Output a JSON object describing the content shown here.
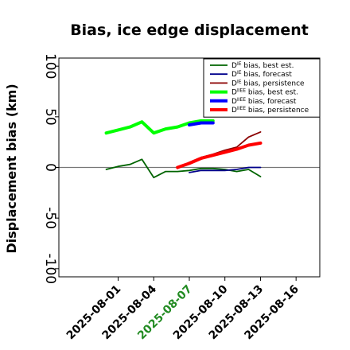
{
  "chart_data": {
    "type": "line",
    "title": "Bias, ice edge displacement",
    "ylabel": "Displacement bias (km)",
    "xlabel": "",
    "ylim": [
      -108,
      108
    ],
    "xlim": [
      "2025-07-27",
      "2025-08-18"
    ],
    "y_ticks": [
      -100,
      -50,
      0,
      50,
      100
    ],
    "x_ticks": [
      {
        "label": "2025-08-01",
        "value": "2025-08-01",
        "color": "#000000"
      },
      {
        "label": "2025-08-04",
        "value": "2025-08-04",
        "color": "#000000"
      },
      {
        "label": "2025-08-07",
        "value": "2025-08-07",
        "color": "#228b22"
      },
      {
        "label": "2025-08-10",
        "value": "2025-08-10",
        "color": "#000000"
      },
      {
        "label": "2025-08-13",
        "value": "2025-08-13",
        "color": "#000000"
      },
      {
        "label": "2025-08-16",
        "value": "2025-08-16",
        "color": "#000000"
      }
    ],
    "zero_line": true,
    "grid": false,
    "legend_position": "top-right",
    "series": [
      {
        "name": "bias, best est.",
        "prefix": "D",
        "sup": "IE",
        "color": "#006400",
        "width": 1.8,
        "x": [
          "2025-07-31",
          "2025-08-01",
          "2025-08-02",
          "2025-08-03",
          "2025-08-04",
          "2025-08-05",
          "2025-08-06",
          "2025-08-07",
          "2025-08-08",
          "2025-08-09",
          "2025-08-10",
          "2025-08-11",
          "2025-08-12",
          "2025-08-13"
        ],
        "y": [
          -2,
          1,
          3,
          8,
          -10,
          -4,
          -4,
          -3,
          -1,
          -1,
          -2,
          -4,
          -2,
          -9
        ]
      },
      {
        "name": "bias, forecast",
        "prefix": "D",
        "sup": "IE",
        "color": "#00008b",
        "width": 1.8,
        "x": [
          "2025-08-07",
          "2025-08-08",
          "2025-08-09",
          "2025-08-10",
          "2025-08-11",
          "2025-08-12",
          "2025-08-13"
        ],
        "y": [
          -5,
          -3,
          -3,
          -3,
          -2,
          0,
          0
        ]
      },
      {
        "name": "bias, persistence",
        "prefix": "D",
        "sup": "IE",
        "color": "#8b0000",
        "width": 1.8,
        "x": [
          "2025-08-06",
          "2025-08-07",
          "2025-08-08",
          "2025-08-09",
          "2025-08-10",
          "2025-08-11",
          "2025-08-12",
          "2025-08-13"
        ],
        "y": [
          -1,
          5,
          10,
          13,
          17,
          20,
          30,
          35
        ]
      },
      {
        "name": "bias, best est.",
        "prefix": "D",
        "sup": "IIEE",
        "color": "#00ff00",
        "width": 4,
        "x": [
          "2025-07-31",
          "2025-08-01",
          "2025-08-02",
          "2025-08-03",
          "2025-08-04",
          "2025-08-05",
          "2025-08-06",
          "2025-08-07",
          "2025-08-08",
          "2025-08-09"
        ],
        "y": [
          34,
          37,
          40,
          45,
          34,
          38,
          40,
          44,
          46,
          46
        ]
      },
      {
        "name": "bias, forecast",
        "prefix": "D",
        "sup": "IIEE",
        "color": "#0000ff",
        "width": 4,
        "x": [
          "2025-08-07",
          "2025-08-08",
          "2025-08-09"
        ],
        "y": [
          42,
          44,
          44
        ]
      },
      {
        "name": "bias, persistence",
        "prefix": "D",
        "sup": "IIEE",
        "color": "#ff0000",
        "width": 4,
        "x": [
          "2025-08-06",
          "2025-08-07",
          "2025-08-08",
          "2025-08-09",
          "2025-08-10",
          "2025-08-11",
          "2025-08-12",
          "2025-08-13"
        ],
        "y": [
          0,
          4,
          9,
          12,
          15,
          18,
          22,
          24
        ]
      }
    ]
  }
}
